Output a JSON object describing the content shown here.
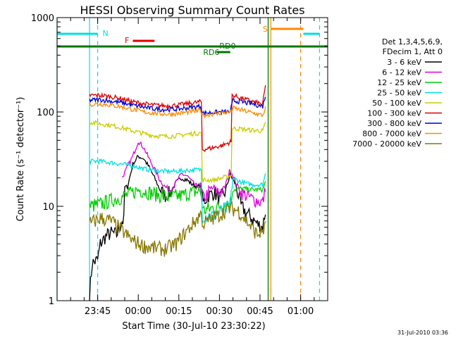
{
  "chart_data": {
    "type": "line",
    "title": "HESSI Observing Summary Count Rates",
    "xlabel": "Start Time (30-Jul-10 23:30:22)",
    "ylabel": "Count Rate (s⁻¹ detector⁻¹)",
    "y_scale": "log",
    "ylim": [
      1,
      1000
    ],
    "xlim": [
      "23:30",
      "01:10"
    ],
    "x_tick_labels": [
      "23:45",
      "00:00",
      "00:15",
      "00:30",
      "00:45",
      "01:00"
    ],
    "y_tick_labels": [
      "1",
      "10",
      "100",
      "1000"
    ],
    "grid": false,
    "legend_position": "right",
    "legend_header": [
      "Det 1,3,4,5,6,9,",
      "FDecim 1, Att 0"
    ],
    "timestamp": "31-Jul-2010 03:36",
    "series": [
      {
        "name": "3 - 6 keV",
        "color": "#000000",
        "points": [
          [
            "23:42",
            1.2
          ],
          [
            "23:43",
            2.5
          ],
          [
            "23:45",
            2.7
          ],
          [
            "23:46",
            4.0
          ],
          [
            "23:48",
            4.8
          ],
          [
            "23:50",
            5.2
          ],
          [
            "23:52",
            5.0
          ],
          [
            "23:54",
            7
          ],
          [
            "23:56",
            16
          ],
          [
            "23:58",
            28
          ],
          [
            "00:00",
            34
          ],
          [
            "00:02",
            32
          ],
          [
            "00:04",
            26
          ],
          [
            "00:06",
            20
          ],
          [
            "00:08",
            15
          ],
          [
            "00:10",
            13
          ],
          [
            "00:12",
            14
          ],
          [
            "00:14",
            18
          ],
          [
            "00:16",
            20
          ],
          [
            "00:18",
            19
          ],
          [
            "00:20",
            17
          ],
          [
            "00:22",
            16
          ],
          [
            "00:23",
            17
          ],
          [
            "00:24",
            11
          ],
          [
            "00:26",
            13
          ],
          [
            "00:28",
            14
          ],
          [
            "00:30",
            12
          ],
          [
            "00:32",
            14
          ],
          [
            "00:34",
            22
          ],
          [
            "00:35",
            19
          ],
          [
            "00:36",
            17
          ],
          [
            "00:38",
            10
          ],
          [
            "00:40",
            8.5
          ],
          [
            "00:42",
            7.5
          ],
          [
            "00:44",
            6.5
          ],
          [
            "00:46",
            6
          ],
          [
            "00:47",
            9
          ]
        ]
      },
      {
        "name": "6 - 12 keV",
        "color": "#dd00dd",
        "points": [
          [
            "23:54",
            20
          ],
          [
            "23:56",
            26
          ],
          [
            "23:58",
            34
          ],
          [
            "00:00",
            49
          ],
          [
            "00:02",
            42
          ],
          [
            "00:04",
            32
          ],
          [
            "00:06",
            25
          ],
          [
            "00:08",
            19
          ],
          [
            "00:10",
            16
          ],
          [
            "00:12",
            15
          ],
          [
            "00:14",
            18
          ],
          [
            "00:16",
            22
          ],
          [
            "00:18",
            21
          ],
          [
            "00:20",
            18
          ],
          [
            "00:22",
            16
          ],
          [
            "00:23",
            17
          ],
          [
            "00:24",
            12
          ],
          [
            "00:26",
            14
          ],
          [
            "00:28",
            16
          ],
          [
            "00:30",
            14
          ],
          [
            "00:32",
            16
          ],
          [
            "00:34",
            25
          ],
          [
            "00:35",
            21
          ],
          [
            "00:36",
            18
          ],
          [
            "00:38",
            14
          ],
          [
            "00:40",
            13
          ],
          [
            "00:42",
            12
          ],
          [
            "00:44",
            11.5
          ],
          [
            "00:46",
            11
          ],
          [
            "00:47",
            15
          ]
        ]
      },
      {
        "name": "12 - 25 keV",
        "color": "#00cc00",
        "points": [
          [
            "23:42",
            10
          ],
          [
            "23:46",
            10.5
          ],
          [
            "23:50",
            11.5
          ],
          [
            "23:54",
            12.5
          ],
          [
            "23:58",
            14
          ],
          [
            "00:00",
            15
          ],
          [
            "00:04",
            14
          ],
          [
            "00:08",
            13
          ],
          [
            "00:12",
            12.5
          ],
          [
            "00:16",
            13
          ],
          [
            "00:20",
            14
          ],
          [
            "00:23",
            14.5
          ],
          [
            "00:24",
            9
          ],
          [
            "00:27",
            9.5
          ],
          [
            "00:30",
            10
          ],
          [
            "00:34",
            11
          ],
          [
            "00:35",
            15
          ],
          [
            "00:38",
            15.5
          ],
          [
            "00:42",
            15
          ],
          [
            "00:46",
            15
          ],
          [
            "00:47",
            18
          ]
        ]
      },
      {
        "name": "25 - 50 keV",
        "color": "#00e0e0",
        "points": [
          [
            "23:42",
            30
          ],
          [
            "23:46",
            30
          ],
          [
            "23:50",
            29
          ],
          [
            "23:54",
            28
          ],
          [
            "23:58",
            27
          ],
          [
            "00:02",
            25
          ],
          [
            "00:06",
            24
          ],
          [
            "00:10",
            23.5
          ],
          [
            "00:14",
            23.5
          ],
          [
            "00:18",
            24
          ],
          [
            "00:23",
            24.5
          ],
          [
            "00:24",
            8
          ],
          [
            "00:28",
            8
          ],
          [
            "00:31",
            9
          ],
          [
            "00:34",
            10
          ],
          [
            "00:35",
            20
          ],
          [
            "00:38",
            18
          ],
          [
            "00:42",
            17
          ],
          [
            "00:46",
            17
          ],
          [
            "00:47",
            22
          ]
        ]
      },
      {
        "name": "50 - 100 keV",
        "color": "#cccc00",
        "points": [
          [
            "23:42",
            78
          ],
          [
            "23:46",
            75
          ],
          [
            "23:50",
            72
          ],
          [
            "23:54",
            68
          ],
          [
            "23:58",
            63
          ],
          [
            "00:02",
            59
          ],
          [
            "00:06",
            56
          ],
          [
            "00:10",
            55
          ],
          [
            "00:14",
            56
          ],
          [
            "00:18",
            58
          ],
          [
            "00:23",
            60
          ],
          [
            "00:24",
            19
          ],
          [
            "00:28",
            19
          ],
          [
            "00:31",
            20
          ],
          [
            "00:34",
            21
          ],
          [
            "00:35",
            67
          ],
          [
            "00:38",
            66
          ],
          [
            "00:42",
            64
          ],
          [
            "00:46",
            63
          ],
          [
            "00:47",
            75
          ]
        ]
      },
      {
        "name": "100 - 300 keV",
        "color": "#dd0000",
        "points": [
          [
            "23:42",
            150
          ],
          [
            "23:46",
            150
          ],
          [
            "23:50",
            145
          ],
          [
            "23:54",
            138
          ],
          [
            "23:58",
            128
          ],
          [
            "00:02",
            122
          ],
          [
            "00:06",
            118
          ],
          [
            "00:10",
            116
          ],
          [
            "00:14",
            118
          ],
          [
            "00:18",
            122
          ],
          [
            "00:23",
            128
          ],
          [
            "00:24",
            40
          ],
          [
            "00:28",
            42
          ],
          [
            "00:31",
            44
          ],
          [
            "00:34",
            48
          ],
          [
            "00:35",
            150
          ],
          [
            "00:38",
            140
          ],
          [
            "00:42",
            130
          ],
          [
            "00:46",
            120
          ],
          [
            "00:47",
            190
          ]
        ]
      },
      {
        "name": "300 - 800 keV",
        "color": "#0000cc",
        "points": [
          [
            "23:42",
            133
          ],
          [
            "23:46",
            135
          ],
          [
            "23:50",
            130
          ],
          [
            "23:54",
            125
          ],
          [
            "23:58",
            118
          ],
          [
            "00:02",
            112
          ],
          [
            "00:06",
            108
          ],
          [
            "00:10",
            106
          ],
          [
            "00:14",
            107
          ],
          [
            "00:18",
            110
          ],
          [
            "00:23",
            115
          ],
          [
            "00:24",
            97
          ],
          [
            "00:28",
            99
          ],
          [
            "00:31",
            100
          ],
          [
            "00:34",
            100
          ],
          [
            "00:35",
            132
          ],
          [
            "00:38",
            128
          ],
          [
            "00:42",
            122
          ],
          [
            "00:46",
            115
          ],
          [
            "00:47",
            150
          ]
        ]
      },
      {
        "name": "800 - 7000 keV",
        "color": "#ff8800",
        "points": [
          [
            "23:42",
            120
          ],
          [
            "23:46",
            122
          ],
          [
            "23:50",
            118
          ],
          [
            "23:54",
            113
          ],
          [
            "23:58",
            106
          ],
          [
            "00:02",
            100
          ],
          [
            "00:06",
            97
          ],
          [
            "00:10",
            95
          ],
          [
            "00:14",
            96
          ],
          [
            "00:18",
            99
          ],
          [
            "00:23",
            103
          ],
          [
            "00:24",
            92
          ],
          [
            "00:28",
            96
          ],
          [
            "00:31",
            98
          ],
          [
            "00:34",
            99
          ],
          [
            "00:35",
            110
          ],
          [
            "00:38",
            105
          ],
          [
            "00:42",
            98
          ],
          [
            "00:46",
            92
          ],
          [
            "00:47",
            110
          ]
        ]
      },
      {
        "name": "7000 - 20000 keV",
        "color": "#887700",
        "points": [
          [
            "23:42",
            6.5
          ],
          [
            "23:46",
            7.5
          ],
          [
            "23:50",
            7
          ],
          [
            "23:54",
            5.5
          ],
          [
            "23:58",
            4.3
          ],
          [
            "00:02",
            3.8
          ],
          [
            "00:06",
            3.6
          ],
          [
            "00:10",
            3.5
          ],
          [
            "00:14",
            4
          ],
          [
            "00:18",
            5.5
          ],
          [
            "00:22",
            7.5
          ],
          [
            "00:23",
            8.5
          ],
          [
            "00:24",
            6.5
          ],
          [
            "00:28",
            7.5
          ],
          [
            "00:31",
            8.5
          ],
          [
            "00:34",
            9.5
          ],
          [
            "00:37",
            9
          ],
          [
            "00:40",
            7
          ],
          [
            "00:44",
            5
          ],
          [
            "00:46",
            5.5
          ],
          [
            "00:47",
            6
          ]
        ]
      }
    ],
    "annotations": [
      {
        "label": "N",
        "color": "#00e0e0"
      },
      {
        "label": "F",
        "color": "#dd0000"
      },
      {
        "label": "S",
        "color": "#ff8800"
      },
      {
        "label": "RD0",
        "color": "#007700"
      },
      {
        "label": "RD6",
        "color": "#007700"
      }
    ]
  }
}
